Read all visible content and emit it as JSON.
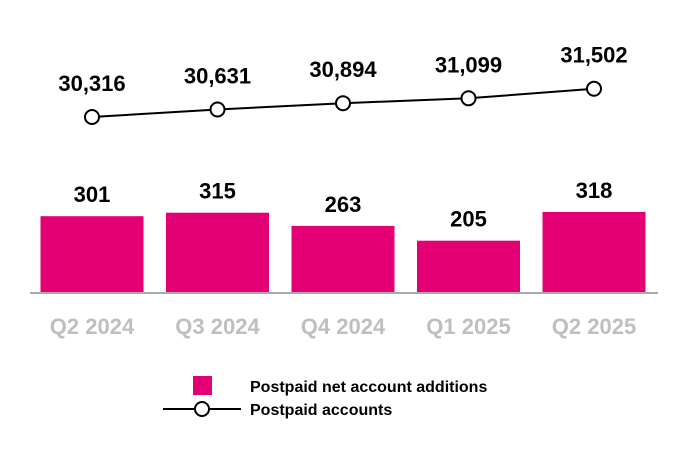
{
  "chart_data": {
    "type": "bar",
    "categories": [
      "Q2 2024",
      "Q3 2024",
      "Q4 2024",
      "Q1 2025",
      "Q2 2025"
    ],
    "series": [
      {
        "name": "Postpaid net account additions",
        "type": "bar",
        "values": [
          301,
          315,
          263,
          205,
          318
        ],
        "value_labels": [
          "301",
          "315",
          "263",
          "205",
          "318"
        ],
        "color": "#E20074"
      },
      {
        "name": "Postpaid accounts",
        "type": "line",
        "values": [
          30316,
          30631,
          30894,
          31099,
          31502
        ],
        "value_labels": [
          "30,316",
          "30,631",
          "30,894",
          "31,099",
          "31,502"
        ],
        "color": "#000000",
        "marker": "open-circle"
      }
    ],
    "ylim_bar": [
      0,
      400
    ],
    "ylim_line": [
      30000,
      31800
    ],
    "grid": false,
    "legend_position": "bottom",
    "category_label_color": "#BFBFBF",
    "axis_color": "#AAAAAA"
  }
}
